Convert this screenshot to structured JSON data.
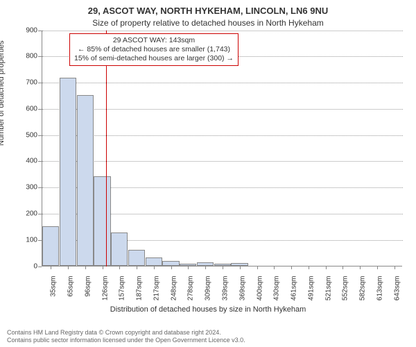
{
  "title": "29, ASCOT WAY, NORTH HYKEHAM, LINCOLN, LN6 9NU",
  "subtitle": "Size of property relative to detached houses in North Hykeham",
  "ylabel": "Number of detached properties",
  "xlabel": "Distribution of detached houses by size in North Hykeham",
  "histogram": {
    "type": "histogram",
    "ylim": [
      0,
      900
    ],
    "ytick_step": 100,
    "yticks": [
      0,
      100,
      200,
      300,
      400,
      500,
      600,
      700,
      800,
      900
    ],
    "xticks": [
      "35sqm",
      "65sqm",
      "96sqm",
      "126sqm",
      "157sqm",
      "187sqm",
      "217sqm",
      "248sqm",
      "278sqm",
      "309sqm",
      "339sqm",
      "369sqm",
      "400sqm",
      "430sqm",
      "461sqm",
      "491sqm",
      "521sqm",
      "552sqm",
      "582sqm",
      "613sqm",
      "643sqm"
    ],
    "values": [
      150,
      715,
      650,
      340,
      125,
      60,
      30,
      18,
      8,
      12,
      6,
      10,
      0,
      0,
      0,
      0,
      0,
      0,
      0,
      0,
      0
    ],
    "bar_fill": "#ccd9ed",
    "bar_stroke": "#888888",
    "grid_color": "#999999",
    "axis_color": "#888888",
    "background_color": "#ffffff",
    "label_fontsize": 10,
    "axis_label_fontsize": 11
  },
  "marker": {
    "position_sqm": 143,
    "color": "#cc0000",
    "annotation_lines": [
      "29 ASCOT WAY: 143sqm",
      "← 85% of detached houses are smaller (1,743)",
      "15% of semi-detached houses are larger (300) →"
    ]
  },
  "footer": {
    "line1": "Contains HM Land Registry data © Crown copyright and database right 2024.",
    "line2": "Contains public sector information licensed under the Open Government Licence v3.0."
  }
}
